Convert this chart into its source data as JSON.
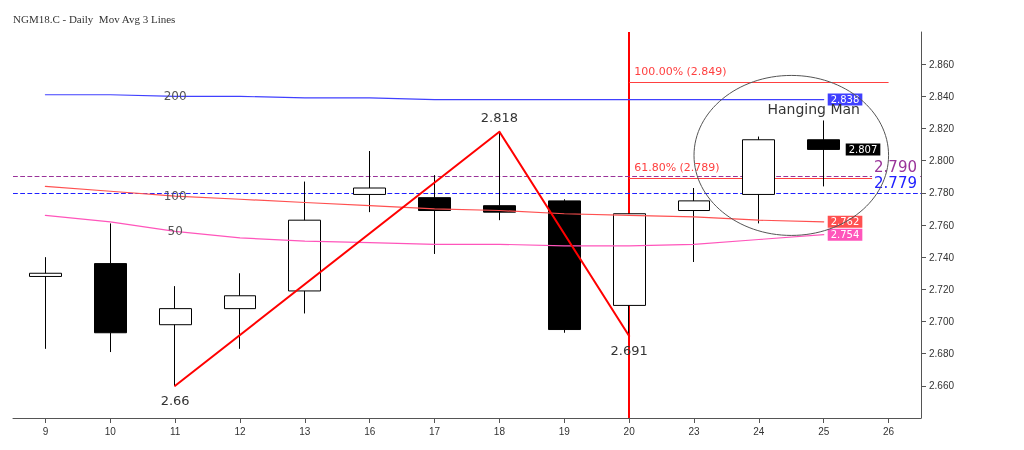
{
  "chart_data": {
    "type": "candlestick",
    "title": "NGM18.C - Daily  Mov Avg 3 Lines",
    "categories": [
      "9",
      "10",
      "11",
      "12",
      "13",
      "16",
      "17",
      "18",
      "19",
      "20",
      "23",
      "24",
      "25",
      "26"
    ],
    "series": [
      {
        "color": "#000000",
        "ohlc": [
          [
            2.728,
            2.74,
            2.683,
            2.73
          ],
          [
            2.736,
            2.761,
            2.681,
            2.693
          ],
          [
            2.698,
            2.722,
            2.66,
            2.708
          ],
          [
            2.708,
            2.73,
            2.683,
            2.716
          ],
          [
            2.719,
            2.787,
            2.705,
            2.763
          ],
          [
            2.779,
            2.806,
            2.768,
            2.783
          ],
          [
            2.777,
            2.791,
            2.742,
            2.769
          ],
          [
            2.772,
            2.818,
            2.763,
            2.768
          ],
          [
            2.775,
            2.776,
            2.693,
            2.695
          ],
          [
            2.71,
            2.767,
            2.691,
            2.767
          ],
          [
            2.769,
            2.783,
            2.737,
            2.775
          ],
          [
            2.779,
            2.815,
            2.761,
            2.813
          ],
          [
            2.813,
            2.825,
            2.784,
            2.807
          ],
          null
        ],
        "value_labels": [
          null,
          null,
          null,
          null,
          null,
          null,
          null,
          null,
          null,
          null,
          null,
          null,
          "2.807",
          null
        ]
      },
      {
        "type": "line",
        "name": "200",
        "color": "#4040ff",
        "values": [
          2.841,
          2.841,
          2.84,
          2.84,
          2.839,
          2.839,
          2.838,
          2.838,
          2.838,
          2.838,
          2.838,
          2.838,
          2.838,
          null
        ],
        "value_labels": [
          null,
          null,
          null,
          null,
          null,
          null,
          null,
          null,
          null,
          null,
          null,
          null,
          "2.838",
          null
        ]
      },
      {
        "type": "line",
        "name": "100",
        "color": "#ff5050",
        "values": [
          2.784,
          2.781,
          2.778,
          2.776,
          2.774,
          2.772,
          2.77,
          2.769,
          2.767,
          2.766,
          2.765,
          2.763,
          2.762,
          null
        ],
        "value_labels": [
          null,
          null,
          null,
          null,
          null,
          null,
          null,
          null,
          null,
          null,
          null,
          null,
          "2.762",
          null
        ]
      },
      {
        "type": "line",
        "name": "50",
        "color": "#ff55bb",
        "values": [
          2.766,
          2.762,
          2.756,
          2.752,
          2.75,
          2.749,
          2.748,
          2.748,
          2.747,
          2.747,
          2.748,
          2.751,
          2.754,
          null
        ],
        "value_labels": [
          null,
          null,
          null,
          null,
          null,
          null,
          null,
          null,
          null,
          null,
          null,
          null,
          "2.754",
          null
        ]
      },
      {
        "type": "line",
        "color": "#ff0000",
        "x": [
          "11",
          "18",
          "20"
        ],
        "values": [
          2.66,
          2.818,
          2.691
        ],
        "value_labels": [
          "2.66",
          "2.818",
          "2.691"
        ]
      }
    ],
    "ylim": [
      2.64,
      2.88
    ],
    "yticks": [
      {
        "value": 2.66,
        "label": "2.660"
      },
      {
        "value": 2.68,
        "label": "2.680"
      },
      {
        "value": 2.7,
        "label": "2.700"
      },
      {
        "value": 2.72,
        "label": "2.720"
      },
      {
        "value": 2.74,
        "label": "2.740"
      },
      {
        "value": 2.76,
        "label": "2.760"
      },
      {
        "value": 2.78,
        "label": "2.780"
      },
      {
        "value": 2.8,
        "label": "2.800"
      },
      {
        "value": 2.82,
        "label": "2.820"
      },
      {
        "value": 2.84,
        "label": "2.840"
      },
      {
        "value": 2.86,
        "label": "2.860"
      }
    ],
    "ref_lines": [
      {
        "axis": "x",
        "value": "20",
        "color": "#ff0000"
      },
      {
        "axis": "y",
        "value": 2.849,
        "label": "100.00% (2.849)",
        "color": "#ff4040"
      },
      {
        "axis": "y",
        "value": 2.789,
        "label": "61.80% (2.789)",
        "color": "#ff4040"
      },
      {
        "axis": "y",
        "value": 2.79,
        "label": "2.790",
        "color": "#993399",
        "line_style": "dashed"
      },
      {
        "axis": "y",
        "value": 2.779,
        "label": "2.779",
        "color": "#2020ff",
        "line_style": "dashed"
      }
    ],
    "annotations": [
      "Hanging Man"
    ],
    "marker": "none",
    "line_style": "solid",
    "grid": false,
    "legend": false
  }
}
